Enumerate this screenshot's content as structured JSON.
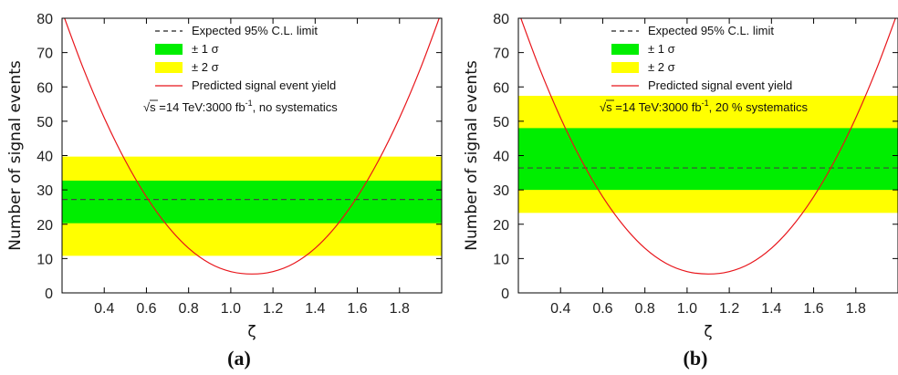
{
  "chart_data": [
    {
      "type": "line",
      "panel_label": "(a)",
      "xlabel": "ζ",
      "ylabel": "Number of signal events",
      "xlim": [
        0.2,
        2.0
      ],
      "ylim": [
        0,
        80
      ],
      "xticks": [
        0.4,
        0.6,
        0.8,
        1.0,
        1.2,
        1.4,
        1.6,
        1.8
      ],
      "xtick_labels": [
        "0.4",
        "0.6",
        "0.8",
        "1.0",
        "1.2",
        "1.4",
        "1.6",
        "1.8"
      ],
      "yticks": [
        0,
        10,
        20,
        30,
        40,
        50,
        60,
        70,
        80
      ],
      "ytick_labels": [
        "0",
        "10",
        "20",
        "30",
        "40",
        "50",
        "60",
        "70",
        "80"
      ],
      "expected_limit": 27.2,
      "band_1sigma": [
        20.3,
        32.7
      ],
      "band_2sigma": [
        10.8,
        39.7
      ],
      "signal_curve": {
        "x": [
          0.2,
          0.3,
          0.4,
          0.5,
          0.6,
          0.7,
          0.8,
          0.9,
          1.0,
          1.1,
          1.2,
          1.3,
          1.4,
          1.5,
          1.6,
          1.7,
          1.8,
          1.9,
          2.0
        ],
        "y": [
          82,
          65.5,
          51,
          38.5,
          28,
          19.5,
          13.0,
          8.6,
          6.2,
          5.5,
          6.2,
          8.6,
          13.0,
          19.5,
          28,
          38.5,
          51,
          65.5,
          82
        ]
      },
      "legend": {
        "placement": "top-center",
        "entries": [
          "Expected 95% C.L. limit",
          "± 1 σ",
          "± 2 σ",
          "Predicted signal event yield"
        ]
      },
      "annotation": {
        "sqrt": "√",
        "s_part": "s =14 TeV:3000 fb",
        "superscript": "-1",
        "suffix": ", no systematics"
      },
      "colors": {
        "band_1sigma": "#00ee00",
        "band_2sigma": "#ffff00",
        "curve": "#e8141a",
        "limit": "#444444"
      }
    },
    {
      "type": "line",
      "panel_label": "(b)",
      "xlabel": "ζ",
      "ylabel": "Number of signal events",
      "xlim": [
        0.2,
        2.0
      ],
      "ylim": [
        0,
        80
      ],
      "xticks": [
        0.4,
        0.6,
        0.8,
        1.0,
        1.2,
        1.4,
        1.6,
        1.8
      ],
      "xtick_labels": [
        "0.4",
        "0.6",
        "0.8",
        "1.0",
        "1.2",
        "1.4",
        "1.6",
        "1.8"
      ],
      "yticks": [
        0,
        10,
        20,
        30,
        40,
        50,
        60,
        70,
        80
      ],
      "ytick_labels": [
        "0",
        "10",
        "20",
        "30",
        "40",
        "50",
        "60",
        "70",
        "80"
      ],
      "expected_limit": 36.4,
      "band_1sigma": [
        30.0,
        48.0
      ],
      "band_2sigma": [
        23.3,
        57.4
      ],
      "signal_curve": {
        "x": [
          0.2,
          0.3,
          0.4,
          0.5,
          0.6,
          0.7,
          0.8,
          0.9,
          1.0,
          1.1,
          1.2,
          1.3,
          1.4,
          1.5,
          1.6,
          1.7,
          1.8,
          1.9,
          2.0
        ],
        "y": [
          82,
          65.5,
          51,
          38.5,
          28,
          19.5,
          13.0,
          8.6,
          6.2,
          5.5,
          6.2,
          8.6,
          13.0,
          19.5,
          28,
          38.5,
          51,
          65.5,
          82
        ]
      },
      "legend": {
        "placement": "top-center",
        "entries": [
          "Expected 95% C.L. limit",
          "± 1 σ",
          "± 2 σ",
          "Predicted signal event yield"
        ]
      },
      "annotation": {
        "sqrt": "√",
        "s_part": "s =14 TeV:3000 fb",
        "superscript": "-1",
        "suffix": ", 20 % systematics"
      },
      "colors": {
        "band_1sigma": "#00ee00",
        "band_2sigma": "#ffff00",
        "curve": "#e8141a",
        "limit": "#444444"
      }
    }
  ]
}
